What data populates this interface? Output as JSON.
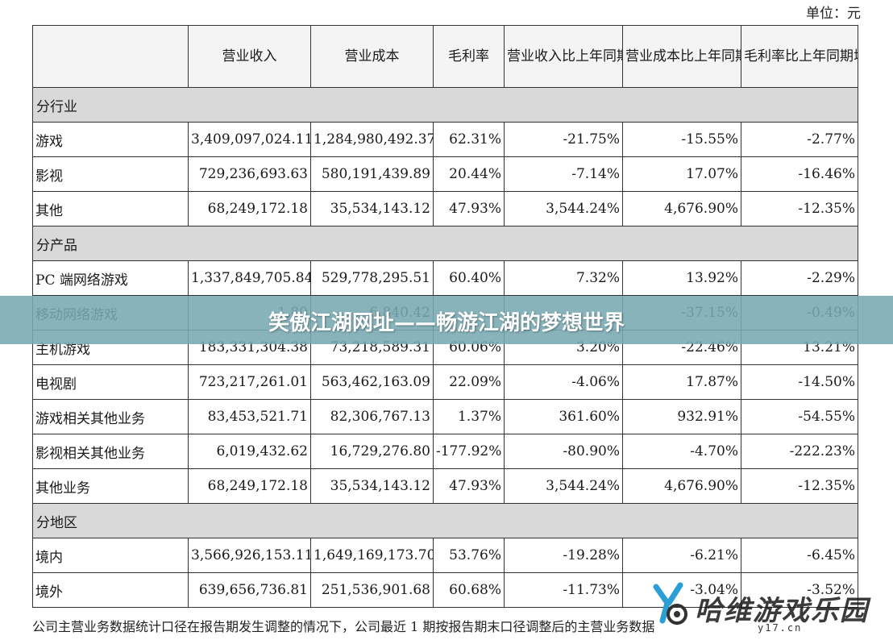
{
  "unit_label": "单位：元",
  "table": {
    "headers": [
      "",
      "营业收入",
      "营业成本",
      "毛利率",
      "营业收入比上年同期增减",
      "营业成本比上年同期增减",
      "毛利率比上年同期增减"
    ],
    "sections": [
      {
        "title": "分行业",
        "rows": [
          [
            "游戏",
            "3,409,097,024.11",
            "1,284,980,492.37",
            "62.31%",
            "-21.75%",
            "-15.55%",
            "-2.77%"
          ],
          [
            "影视",
            "729,236,693.63",
            "580,191,439.89",
            "20.44%",
            "-7.14%",
            "17.07%",
            "-16.46%"
          ],
          [
            "其他",
            "68,249,172.18",
            "35,534,143.12",
            "47.93%",
            "3,544.24%",
            "4,676.90%",
            "-12.35%"
          ]
        ]
      },
      {
        "title": "分产品",
        "rows": [
          [
            "PC 端网络游戏",
            "1,337,849,705.84",
            "529,778,295.51",
            "60.40%",
            "7.32%",
            "13.92%",
            "-2.29%"
          ],
          [
            "移动网络游戏",
            "1,80",
            "6,840.42",
            "",
            "",
            "-37.15%",
            "-0.49%"
          ],
          [
            "主机游戏",
            "183,331,304.38",
            "73,218,589.31",
            "60.06%",
            "3.20%",
            "-22.46%",
            "13.21%"
          ],
          [
            "电视剧",
            "723,217,261.01",
            "563,462,163.09",
            "22.09%",
            "-4.06%",
            "17.87%",
            "-14.50%"
          ],
          [
            "游戏相关其他业务",
            "83,453,521.71",
            "82,306,767.13",
            "1.37%",
            "361.60%",
            "932.91%",
            "-54.55%"
          ],
          [
            "影视相关其他业务",
            "6,019,432.62",
            "16,729,276.80",
            "-177.92%",
            "-80.90%",
            "-4.70%",
            "-222.23%"
          ],
          [
            "其他业务",
            "68,249,172.18",
            "35,534,143.12",
            "47.93%",
            "3,544.24%",
            "4,676.90%",
            "-12.35%"
          ]
        ]
      },
      {
        "title": "分地区",
        "rows": [
          [
            "境内",
            "3,566,926,153.11",
            "1,649,169,173.70",
            "53.76%",
            "-19.28%",
            "-6.21%",
            "-6.45%"
          ],
          [
            "境外",
            "639,656,736.81",
            "251,536,901.68",
            "60.68%",
            "-11.73%",
            "-3.04%",
            "-3.52%"
          ]
        ]
      }
    ]
  },
  "footer_text": "公司主营业务数据统计口径在报告期发生调整的情况下，公司最近 1 期按报告期末口径调整后的主营业务数据",
  "banner": {
    "title": "笑傲江湖网址——畅游江湖的梦想世界"
  },
  "watermark": {
    "text": "哈维游戏乐园",
    "url": "y17.cn",
    "color": "#2a9fd6"
  },
  "colors": {
    "section_bg": "#d9d9d9",
    "banner_bg": "#78a8b2",
    "border": "#333333"
  }
}
